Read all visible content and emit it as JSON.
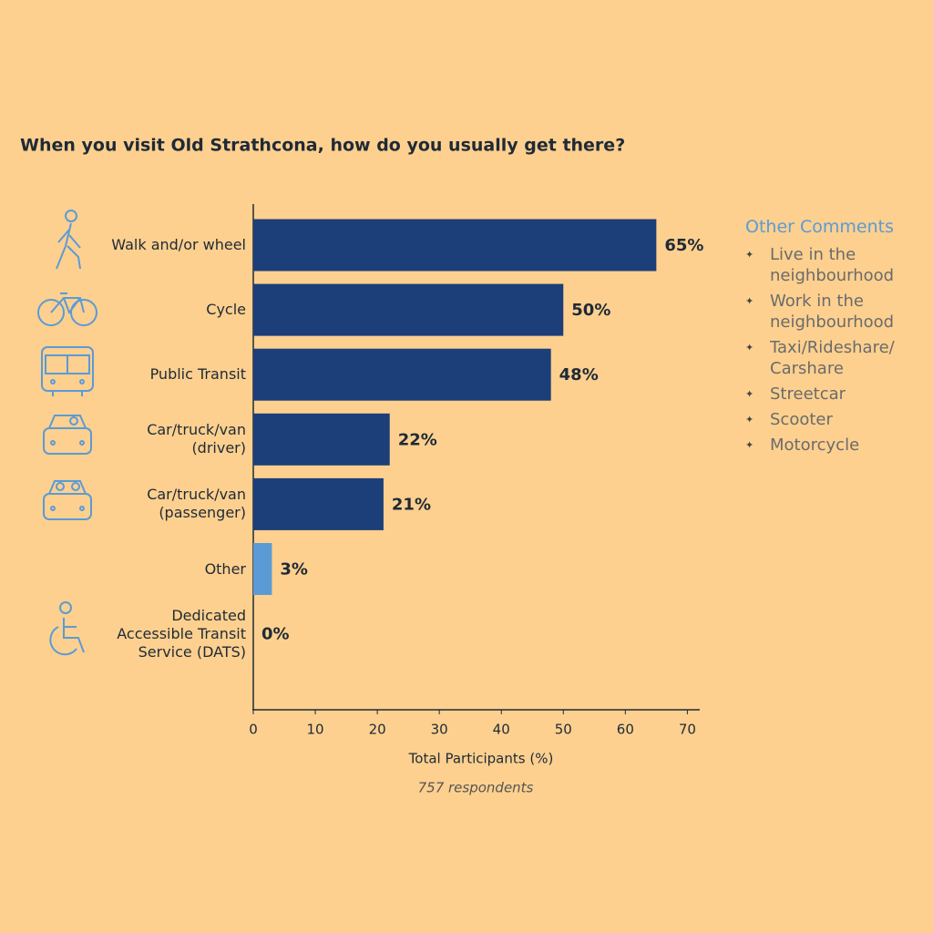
{
  "chart_data": {
    "type": "hbar",
    "title": "When you visit Old Strathcona, how do you usually get there?",
    "categories": [
      "Walk and/or wheel",
      "Cycle",
      "Public Transit",
      "Car/truck/van\n(driver)",
      "Car/truck/van\n(passenger)",
      "Other",
      "Dedicated\nAccessible Transit\nService (DATS)"
    ],
    "values": [
      65,
      50,
      48,
      22,
      21,
      3,
      0
    ],
    "value_labels": [
      "65%",
      "50%",
      "48%",
      "22%",
      "21%",
      "3%",
      "0%"
    ],
    "colors": [
      "#1c3f7a",
      "#1c3f7a",
      "#1c3f7a",
      "#1c3f7a",
      "#1c3f7a",
      "#5b9bd5",
      "#1c3f7a"
    ],
    "xlim": [
      0,
      72
    ],
    "xticks": [
      0,
      10,
      20,
      30,
      40,
      50,
      60,
      70
    ],
    "xlabel": "Total Participants (%)",
    "subtitle": "757 respondents",
    "comments_title": "Other Comments",
    "comments": [
      "Live in the\nneighbourhood",
      "Work in the\nneighbourhood",
      "Taxi/Rideshare/\nCarshare",
      "Streetcar",
      "Scooter",
      "Motorcycle"
    ]
  }
}
